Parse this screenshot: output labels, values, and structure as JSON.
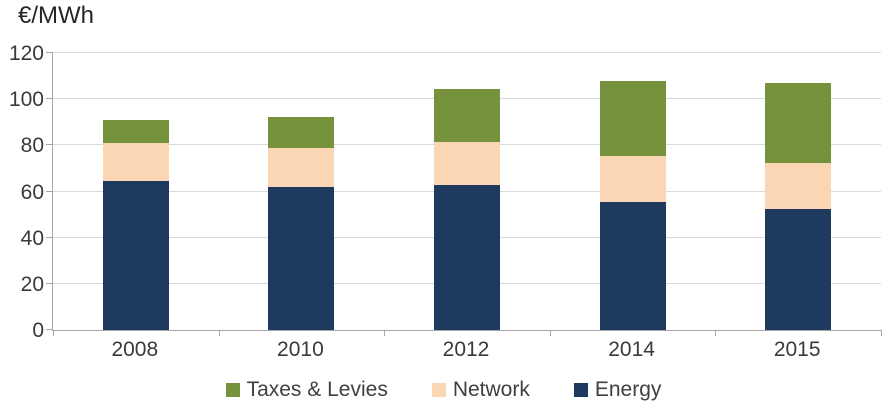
{
  "chart_data": {
    "type": "bar",
    "stacked": true,
    "title": "€/MWh",
    "categories": [
      "2008",
      "2010",
      "2012",
      "2014",
      "2015"
    ],
    "series": [
      {
        "name": "Energy",
        "color": "#1F3A5F",
        "border": "#16304F",
        "values": [
          64.5,
          62,
          63,
          55.5,
          52.5
        ]
      },
      {
        "name": "Network",
        "color": "#FBD6B4",
        "border": null,
        "values": [
          16.5,
          17,
          18.5,
          20,
          20
        ]
      },
      {
        "name": "Taxes & Levies",
        "color": "#76923C",
        "border": null,
        "values": [
          10,
          13.5,
          23,
          32.5,
          34.5
        ]
      }
    ],
    "stack_totals": [
      91,
      92.5,
      104.5,
      108,
      107
    ],
    "xlabel": "",
    "ylabel": "€/MWh",
    "ylim": [
      0,
      120
    ],
    "y_ticks": [
      0,
      20,
      40,
      60,
      80,
      100,
      120
    ],
    "grid": true,
    "legend_position": "bottom",
    "legend_order": [
      "Taxes & Levies",
      "Network",
      "Energy"
    ],
    "colors": {
      "gridline": "#D9D9D9",
      "axis": "#A6A6A6",
      "text": "#3a3a3a",
      "background": "#FFFFFF"
    }
  }
}
